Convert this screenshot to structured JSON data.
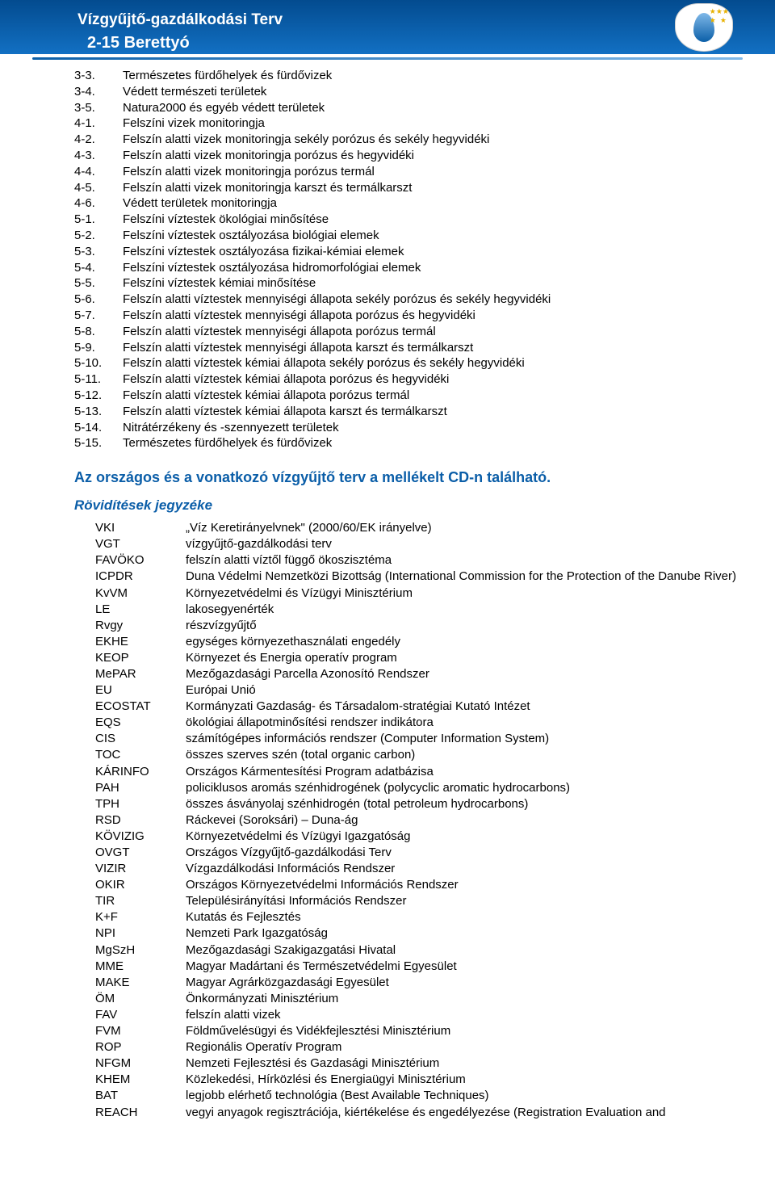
{
  "header": {
    "title1": "Vízgyűjtő-gazdálkodási Terv",
    "title1_fontsize": 19,
    "title2": "2-15 Berettyó",
    "title2_fontsize": 20,
    "band_gradient_top": "#034b8f",
    "band_gradient_bottom": "#1270c3",
    "text_color": "#ffffff"
  },
  "colors": {
    "heading": "#0b5ea8",
    "body_text": "#000000",
    "background": "#ffffff"
  },
  "numbered_items": [
    {
      "num": "3-3.",
      "text": "Természetes fürdőhelyek és fürdővizek"
    },
    {
      "num": "3-4.",
      "text": "Védett természeti területek"
    },
    {
      "num": "3-5.",
      "text": "Natura2000 és egyéb védett területek"
    },
    {
      "num": "4-1.",
      "text": "Felszíni vizek monitoringja"
    },
    {
      "num": "4-2.",
      "text": "Felszín alatti vizek monitoringja sekély porózus és sekély hegyvidéki"
    },
    {
      "num": "4-3.",
      "text": "Felszín alatti vizek monitoringja porózus és hegyvidéki"
    },
    {
      "num": "4-4.",
      "text": "Felszín alatti vizek monitoringja porózus termál"
    },
    {
      "num": "4-5.",
      "text": "Felszín alatti vizek monitoringja karszt és termálkarszt"
    },
    {
      "num": "4-6.",
      "text": "Védett területek monitoringja"
    },
    {
      "num": "5-1.",
      "text": "Felszíni víztestek ökológiai minősítése"
    },
    {
      "num": "5-2.",
      "text": "Felszíni víztestek osztályozása biológiai elemek"
    },
    {
      "num": "5-3.",
      "text": "Felszíni víztestek osztályozása fizikai-kémiai elemek"
    },
    {
      "num": "5-4.",
      "text": "Felszíni víztestek osztályozása hidromorfológiai elemek"
    },
    {
      "num": "5-5.",
      "text": "Felszíni víztestek kémiai minősítése"
    },
    {
      "num": "5-6.",
      "text": "Felszín alatti víztestek mennyiségi állapota sekély porózus és sekély hegyvidéki"
    },
    {
      "num": "5-7.",
      "text": "Felszín alatti víztestek mennyiségi állapota porózus és hegyvidéki"
    },
    {
      "num": "5-8.",
      "text": "Felszín alatti víztestek mennyiségi állapota porózus termál"
    },
    {
      "num": "5-9.",
      "text": "Felszín alatti víztestek mennyiségi állapota karszt és termálkarszt"
    },
    {
      "num": "5-10.",
      "text": "Felszín alatti víztestek kémiai állapota sekély porózus és sekély hegyvidéki"
    },
    {
      "num": "5-11.",
      "text": "Felszín alatti víztestek kémiai állapota porózus és hegyvidéki"
    },
    {
      "num": "5-12.",
      "text": "Felszín alatti víztestek kémiai állapota porózus termál"
    },
    {
      "num": "5-13.",
      "text": "Felszín alatti víztestek kémiai állapota karszt és termálkarszt"
    },
    {
      "num": "5-14.",
      "text": "Nitrátérzékeny és -szennyezett területek"
    },
    {
      "num": "5-15.",
      "text": "Természetes fürdőhelyek és fürdővizek"
    }
  ],
  "section_headings": {
    "h2": "Az országos és a vonatkozó vízgyűjtő terv a mellékelt CD-n található.",
    "h2_fontsize": 18,
    "h3": "Rövidítések jegyzéke",
    "h3_fontsize": 17
  },
  "abbreviations": [
    {
      "code": "VKI",
      "def": "„Víz Keretirányelvnek\" (2000/60/EK irányelve)"
    },
    {
      "code": "VGT",
      "def": "vízgyűjtő-gazdálkodási terv"
    },
    {
      "code": "FAVÖKO",
      "def": "felszín alatti víztől függő ökoszisztéma"
    },
    {
      "code": "ICPDR",
      "def": "Duna Védelmi Nemzetközi Bizottság (International Commission for the Protection of the Danube River)"
    },
    {
      "code": "KvVM",
      "def": "Környezetvédelmi és Vízügyi Minisztérium"
    },
    {
      "code": "LE",
      "def": "lakosegyenérték"
    },
    {
      "code": "Rvgy",
      "def": "részvízgyűjtő"
    },
    {
      "code": "EKHE",
      "def": "egységes környezethasználati engedély"
    },
    {
      "code": "KEOP",
      "def": "Környezet és Energia operatív program"
    },
    {
      "code": "MePAR",
      "def": "Mezőgazdasági Parcella Azonosító Rendszer"
    },
    {
      "code": "EU",
      "def": "Európai Unió"
    },
    {
      "code": "ECOSTAT",
      "def": "Kormányzati Gazdaság- és Társadalom-stratégiai Kutató Intézet"
    },
    {
      "code": "EQS",
      "def": "ökológiai állapotminősítési rendszer indikátora"
    },
    {
      "code": "CIS",
      "def": "számítógépes információs rendszer (Computer Information System)"
    },
    {
      "code": "TOC",
      "def": "összes szerves szén (total organic carbon)"
    },
    {
      "code": "KÁRINFO",
      "def": "Országos Kármentesítési Program adatbázisa"
    },
    {
      "code": "PAH",
      "def": "policiklusos aromás szénhidrogének (polycyclic aromatic hydrocarbons)"
    },
    {
      "code": "TPH",
      "def": "összes ásványolaj szénhidrogén (total petroleum hydrocarbons)"
    },
    {
      "code": "RSD",
      "def": "Ráckevei (Soroksári) – Duna-ág"
    },
    {
      "code": "KÖVIZIG",
      "def": "Környezetvédelmi és Vízügyi Igazgatóság"
    },
    {
      "code": "OVGT",
      "def": "Országos Vízgyűjtő-gazdálkodási Terv"
    },
    {
      "code": "VIZIR",
      "def": "Vízgazdálkodási Információs Rendszer"
    },
    {
      "code": "OKIR",
      "def": "Országos Környezetvédelmi Információs Rendszer"
    },
    {
      "code": "TIR",
      "def": "Településirányítási Információs Rendszer"
    },
    {
      "code": "K+F",
      "def": "Kutatás és Fejlesztés"
    },
    {
      "code": "NPI",
      "def": "Nemzeti Park Igazgatóság"
    },
    {
      "code": "MgSzH",
      "def": "Mezőgazdasági Szakigazgatási Hivatal"
    },
    {
      "code": "MME",
      "def": "Magyar Madártani és Természetvédelmi Egyesület"
    },
    {
      "code": "MAKE",
      "def": "Magyar Agrárközgazdasági Egyesület"
    },
    {
      "code": "ÖM",
      "def": "Önkormányzati Minisztérium"
    },
    {
      "code": "FAV",
      "def": "felszín alatti vizek"
    },
    {
      "code": "FVM",
      "def": "Földművelésügyi és Vidékfejlesztési Minisztérium"
    },
    {
      "code": "ROP",
      "def": "Regionális Operatív Program"
    },
    {
      "code": "NFGM",
      "def": "Nemzeti Fejlesztési és Gazdasági Minisztérium"
    },
    {
      "code": "KHEM",
      "def": "Közlekedési, Hírközlési és Energiaügyi Minisztérium"
    },
    {
      "code": "BAT",
      "def": "legjobb elérhető technológia (Best Available Techniques)"
    },
    {
      "code": "REACH",
      "def": "vegyi anyagok regisztrációja, kiértékelése és engedélyezése (Registration Evaluation and"
    }
  ]
}
